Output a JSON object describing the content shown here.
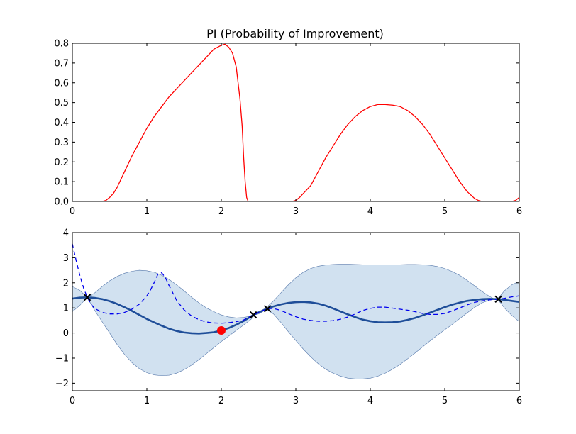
{
  "chart_data": [
    {
      "type": "line",
      "title": "PI (Probability of Improvement)",
      "xlabel": "",
      "ylabel": "",
      "xlim": [
        0,
        6
      ],
      "ylim": [
        0,
        0.8
      ],
      "xticks": [
        0,
        1,
        2,
        3,
        4,
        5,
        6
      ],
      "xtick_labels": [
        "0",
        "1",
        "2",
        "3",
        "4",
        "5",
        "6"
      ],
      "yticks": [
        0,
        0.1,
        0.2,
        0.3,
        0.4,
        0.5,
        0.6,
        0.7,
        0.8
      ],
      "ytick_labels": [
        "0.0",
        "0.1",
        "0.2",
        "0.3",
        "0.4",
        "0.5",
        "0.6",
        "0.7",
        "0.8"
      ],
      "grid": false,
      "series": [
        {
          "color": "#ff0000",
          "x": [
            0,
            0.2,
            0.4,
            0.45,
            0.5,
            0.55,
            0.6,
            0.7,
            0.8,
            0.9,
            1.0,
            1.1,
            1.2,
            1.3,
            1.4,
            1.5,
            1.6,
            1.7,
            1.8,
            1.9,
            2.0,
            2.05,
            2.1,
            2.15,
            2.2,
            2.25,
            2.28,
            2.3,
            2.32,
            2.34,
            2.36,
            2.4,
            2.6,
            2.8,
            2.95,
            3.0,
            3.05,
            3.1,
            3.2,
            3.3,
            3.4,
            3.5,
            3.6,
            3.7,
            3.8,
            3.9,
            4.0,
            4.1,
            4.2,
            4.3,
            4.4,
            4.5,
            4.6,
            4.7,
            4.8,
            4.9,
            5.0,
            5.1,
            5.2,
            5.3,
            5.4,
            5.45,
            5.5,
            5.55,
            5.6,
            5.7,
            5.8,
            5.9,
            5.95,
            6.0
          ],
          "y": [
            0,
            0,
            0,
            0.005,
            0.02,
            0.04,
            0.07,
            0.15,
            0.23,
            0.3,
            0.37,
            0.43,
            0.48,
            0.53,
            0.57,
            0.61,
            0.65,
            0.69,
            0.73,
            0.77,
            0.79,
            0.795,
            0.78,
            0.75,
            0.68,
            0.52,
            0.38,
            0.22,
            0.1,
            0.02,
            0,
            0,
            0,
            0,
            0,
            0.005,
            0.02,
            0.04,
            0.08,
            0.15,
            0.22,
            0.28,
            0.34,
            0.39,
            0.43,
            0.46,
            0.48,
            0.49,
            0.49,
            0.487,
            0.48,
            0.46,
            0.43,
            0.39,
            0.34,
            0.28,
            0.22,
            0.16,
            0.1,
            0.05,
            0.015,
            0.005,
            0,
            0,
            0,
            0,
            0,
            0,
            0.005,
            0.02
          ]
        }
      ]
    },
    {
      "type": "line",
      "title": "",
      "xlabel": "",
      "ylabel": "",
      "xlim": [
        0,
        6
      ],
      "ylim": [
        -2.3,
        4
      ],
      "xticks": [
        0,
        1,
        2,
        3,
        4,
        5,
        6
      ],
      "xtick_labels": [
        "0",
        "1",
        "2",
        "3",
        "4",
        "5",
        "6"
      ],
      "yticks": [
        -2,
        -1,
        0,
        1,
        2,
        3,
        4
      ],
      "ytick_labels": [
        "−2",
        "−1",
        "0",
        "1",
        "2",
        "3",
        "4"
      ],
      "grid": false,
      "band": {
        "fill_color": "#c6d9ec",
        "edge_color": "#5577aa",
        "x": [
          0,
          0.1,
          0.2,
          0.3,
          0.4,
          0.5,
          0.6,
          0.7,
          0.8,
          0.9,
          1.0,
          1.1,
          1.2,
          1.3,
          1.4,
          1.5,
          1.6,
          1.7,
          1.8,
          1.9,
          2.0,
          2.1,
          2.2,
          2.3,
          2.4,
          2.45,
          2.5,
          2.55,
          2.6,
          2.7,
          2.8,
          2.9,
          3.0,
          3.1,
          3.2,
          3.3,
          3.4,
          3.5,
          3.6,
          3.7,
          3.8,
          3.9,
          4.0,
          4.1,
          4.2,
          4.3,
          4.4,
          4.5,
          4.6,
          4.7,
          4.8,
          4.9,
          5.0,
          5.1,
          5.2,
          5.3,
          5.4,
          5.5,
          5.6,
          5.65,
          5.7,
          5.75,
          5.8,
          5.9,
          6.0
        ],
        "upper": [
          1.85,
          1.7,
          1.42,
          1.6,
          1.85,
          2.08,
          2.25,
          2.38,
          2.46,
          2.5,
          2.48,
          2.42,
          2.3,
          2.13,
          1.92,
          1.68,
          1.43,
          1.2,
          1.0,
          0.85,
          0.72,
          0.64,
          0.6,
          0.62,
          0.68,
          0.72,
          0.82,
          0.92,
          1.0,
          1.28,
          1.6,
          1.92,
          2.2,
          2.42,
          2.57,
          2.66,
          2.71,
          2.73,
          2.74,
          2.74,
          2.73,
          2.72,
          2.72,
          2.71,
          2.71,
          2.71,
          2.72,
          2.73,
          2.73,
          2.72,
          2.7,
          2.65,
          2.57,
          2.45,
          2.3,
          2.1,
          1.88,
          1.66,
          1.46,
          1.38,
          1.35,
          1.5,
          1.68,
          1.92,
          2.06
        ],
        "lower": [
          0.85,
          1.1,
          1.42,
          0.9,
          0.45,
          0.0,
          -0.45,
          -0.85,
          -1.18,
          -1.42,
          -1.58,
          -1.67,
          -1.7,
          -1.68,
          -1.6,
          -1.46,
          -1.28,
          -1.06,
          -0.82,
          -0.58,
          -0.34,
          -0.12,
          0.1,
          0.32,
          0.55,
          0.72,
          0.76,
          0.84,
          0.96,
          0.76,
          0.42,
          0.05,
          -0.3,
          -0.64,
          -0.95,
          -1.22,
          -1.44,
          -1.6,
          -1.72,
          -1.8,
          -1.83,
          -1.83,
          -1.8,
          -1.72,
          -1.6,
          -1.44,
          -1.25,
          -1.03,
          -0.8,
          -0.56,
          -0.32,
          -0.09,
          0.13,
          0.34,
          0.57,
          0.8,
          1.02,
          1.2,
          1.31,
          1.33,
          1.35,
          1.2,
          1.0,
          0.7,
          0.45
        ]
      },
      "series": [
        {
          "color": "#1f4e99",
          "style": "solid",
          "x": [
            0,
            0.1,
            0.2,
            0.3,
            0.4,
            0.5,
            0.6,
            0.7,
            0.8,
            0.9,
            1.0,
            1.1,
            1.2,
            1.3,
            1.4,
            1.5,
            1.6,
            1.7,
            1.8,
            1.9,
            2.0,
            2.1,
            2.2,
            2.3,
            2.43,
            2.5,
            2.62,
            2.7,
            2.8,
            2.9,
            3.0,
            3.1,
            3.2,
            3.3,
            3.4,
            3.5,
            3.6,
            3.7,
            3.8,
            3.9,
            4.0,
            4.1,
            4.2,
            4.3,
            4.4,
            4.5,
            4.6,
            4.7,
            4.8,
            4.9,
            5.0,
            5.1,
            5.2,
            5.3,
            5.4,
            5.5,
            5.6,
            5.72,
            5.8,
            5.9,
            6.0
          ],
          "y": [
            1.37,
            1.41,
            1.42,
            1.4,
            1.35,
            1.27,
            1.16,
            1.03,
            0.88,
            0.72,
            0.56,
            0.42,
            0.29,
            0.17,
            0.08,
            0.02,
            -0.01,
            -0.02,
            0.0,
            0.03,
            0.1,
            0.2,
            0.33,
            0.48,
            0.72,
            0.82,
            0.97,
            1.06,
            1.14,
            1.2,
            1.23,
            1.24,
            1.22,
            1.17,
            1.09,
            0.98,
            0.86,
            0.74,
            0.63,
            0.53,
            0.47,
            0.43,
            0.42,
            0.43,
            0.46,
            0.52,
            0.6,
            0.7,
            0.81,
            0.92,
            1.03,
            1.13,
            1.21,
            1.28,
            1.32,
            1.35,
            1.36,
            1.35,
            1.32,
            1.28,
            1.24
          ]
        },
        {
          "color": "#0000ee",
          "style": "dashed",
          "x": [
            0,
            0.05,
            0.1,
            0.15,
            0.2,
            0.25,
            0.3,
            0.4,
            0.5,
            0.6,
            0.7,
            0.8,
            0.9,
            1.0,
            1.05,
            1.1,
            1.15,
            1.2,
            1.25,
            1.3,
            1.4,
            1.5,
            1.6,
            1.7,
            1.8,
            1.9,
            2.0,
            2.1,
            2.2,
            2.3,
            2.43,
            2.5,
            2.62,
            2.7,
            2.8,
            2.9,
            3.0,
            3.1,
            3.2,
            3.3,
            3.4,
            3.5,
            3.6,
            3.7,
            3.8,
            3.9,
            4.0,
            4.1,
            4.2,
            4.3,
            4.4,
            4.5,
            4.6,
            4.7,
            4.8,
            4.9,
            5.0,
            5.1,
            5.2,
            5.3,
            5.4,
            5.5,
            5.6,
            5.72,
            5.8,
            5.9,
            6.0
          ],
          "y": [
            3.55,
            2.9,
            2.3,
            1.8,
            1.42,
            1.15,
            0.98,
            0.82,
            0.76,
            0.76,
            0.82,
            0.95,
            1.15,
            1.48,
            1.72,
            2.02,
            2.35,
            2.4,
            2.2,
            1.88,
            1.3,
            0.92,
            0.68,
            0.53,
            0.44,
            0.4,
            0.39,
            0.41,
            0.45,
            0.52,
            0.72,
            0.82,
            0.97,
            0.98,
            0.9,
            0.77,
            0.65,
            0.55,
            0.5,
            0.47,
            0.47,
            0.49,
            0.55,
            0.64,
            0.76,
            0.9,
            0.98,
            1.03,
            1.03,
            0.99,
            0.95,
            0.91,
            0.85,
            0.78,
            0.74,
            0.74,
            0.78,
            0.88,
            1.0,
            1.12,
            1.22,
            1.28,
            1.32,
            1.35,
            1.38,
            1.44,
            1.48
          ]
        }
      ],
      "observations": {
        "marker": "x",
        "color": "#000000",
        "x": [
          0.2,
          2.43,
          2.62,
          5.72
        ],
        "y": [
          1.42,
          0.72,
          0.97,
          1.35
        ]
      },
      "highlight": {
        "marker": "circle",
        "color": "#ff0000",
        "x": 2.0,
        "y": 0.1
      }
    }
  ]
}
